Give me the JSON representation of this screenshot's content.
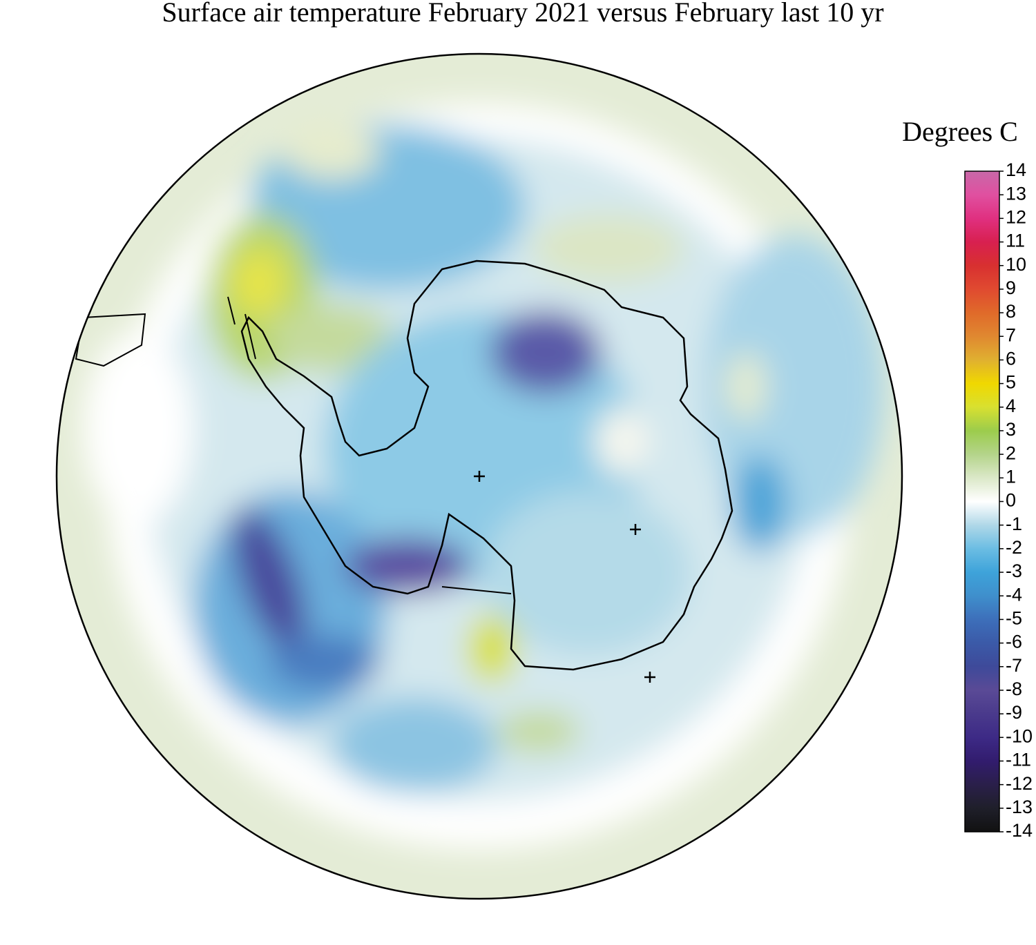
{
  "title": "Surface air temperature February 2021 versus February last 10 yr",
  "colorbar": {
    "title": "Degrees C",
    "lim": [
      -14,
      14
    ],
    "ticks": [
      -14,
      -13,
      -12,
      -11,
      -10,
      -9,
      -8,
      -7,
      -6,
      -5,
      -4,
      -3,
      -2,
      -1,
      0,
      1,
      2,
      3,
      4,
      5,
      6,
      7,
      8,
      9,
      10,
      11,
      12,
      13,
      14
    ],
    "colors": [
      "#111111",
      "#1f1f2a",
      "#2a1f4a",
      "#321c6e",
      "#3d2a86",
      "#4a3a8c",
      "#5a4a96",
      "#3e4a9a",
      "#3b5aa8",
      "#3d6fba",
      "#3f8fcc",
      "#3ea3da",
      "#6bbde3",
      "#b0d8e8",
      "#ffffff",
      "#dbe8c8",
      "#b4d48a",
      "#9ccc4c",
      "#d8e030",
      "#f0d800",
      "#e0b030",
      "#e08830",
      "#e06a2a",
      "#e04a30",
      "#d83030",
      "#d82050",
      "#e03080",
      "#e050a0",
      "#c868a8"
    ]
  }
}
